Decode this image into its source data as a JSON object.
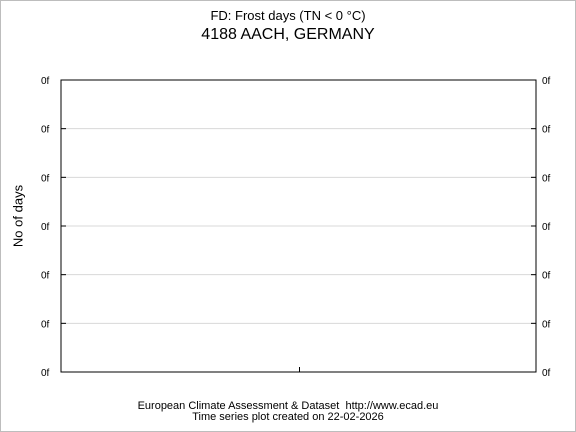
{
  "header": {
    "title": "FD: Frost days (TN < 0 °C)",
    "subtitle": "4188 AACH, GERMANY"
  },
  "footer": {
    "line1": "European Climate Assessment & Dataset  http://www.ecad.eu",
    "line2": "Time series plot created on 22-02-2026"
  },
  "chart_data": {
    "type": "line",
    "title": "FD: Frost days (TN < 0 °C)",
    "subtitle": "4188 AACH, GERMANY",
    "xlabel": "",
    "ylabel": "No of days",
    "y_tick_labels": [
      "0f",
      "0f",
      "0f",
      "0f",
      "0f",
      "0f",
      "0f"
    ],
    "x_tick_labels": [],
    "series": [],
    "grid": "horizontal",
    "legend": "none"
  }
}
